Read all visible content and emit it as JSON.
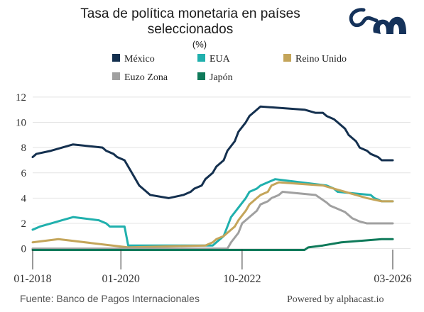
{
  "header": {
    "title_line1": "Tasa de política monetaria en países",
    "title_line2": "seleccionados",
    "unit": "(%)"
  },
  "footer": {
    "source": "Fuente: Banco de Pagos Internacionales",
    "powered": "Powered by alphacast.io"
  },
  "colors": {
    "mexico": "#14304f",
    "eua": "#20b0ad",
    "reino_unido": "#c4a55a",
    "euro": "#a0a0a0",
    "japon": "#0f7a5a",
    "grid": "#e3e3e3",
    "logo": "#15325a"
  },
  "chart_data": {
    "type": "line",
    "x_ticks": [
      "01-2018",
      "01-2020",
      "10-2022",
      "03-2026"
    ],
    "y_ticks": [
      0,
      2,
      4,
      6,
      8,
      10,
      12
    ],
    "ylim": [
      -0.3,
      12.5
    ],
    "x_range": [
      "01-2018",
      "03-2026"
    ],
    "grid": true,
    "legend_position": "top",
    "series": [
      {
        "name": "México",
        "key": "mexico",
        "points": [
          [
            "01-2018",
            7.25
          ],
          [
            "02-2018",
            7.5
          ],
          [
            "06-2018",
            7.75
          ],
          [
            "12-2018",
            8.25
          ],
          [
            "08-2019",
            8.0
          ],
          [
            "09-2019",
            7.75
          ],
          [
            "11-2019",
            7.5
          ],
          [
            "12-2019",
            7.25
          ],
          [
            "02-2020",
            7.0
          ],
          [
            "03-2020",
            6.5
          ],
          [
            "04-2020",
            6.0
          ],
          [
            "05-2020",
            5.5
          ],
          [
            "06-2020",
            5.0
          ],
          [
            "08-2020",
            4.5
          ],
          [
            "09-2020",
            4.25
          ],
          [
            "02-2021",
            4.0
          ],
          [
            "06-2021",
            4.25
          ],
          [
            "08-2021",
            4.5
          ],
          [
            "09-2021",
            4.75
          ],
          [
            "11-2021",
            5.0
          ],
          [
            "12-2021",
            5.5
          ],
          [
            "02-2022",
            6.0
          ],
          [
            "03-2022",
            6.5
          ],
          [
            "05-2022",
            7.0
          ],
          [
            "06-2022",
            7.75
          ],
          [
            "08-2022",
            8.5
          ],
          [
            "09-2022",
            9.25
          ],
          [
            "11-2022",
            10.0
          ],
          [
            "12-2022",
            10.5
          ],
          [
            "02-2023",
            11.0
          ],
          [
            "03-2023",
            11.25
          ],
          [
            "03-2024",
            11.0
          ],
          [
            "06-2024",
            10.75
          ],
          [
            "08-2024",
            10.75
          ],
          [
            "09-2024",
            10.5
          ],
          [
            "11-2024",
            10.25
          ],
          [
            "12-2024",
            10.0
          ],
          [
            "02-2025",
            9.5
          ],
          [
            "03-2025",
            9.0
          ],
          [
            "05-2025",
            8.5
          ],
          [
            "06-2025",
            8.0
          ],
          [
            "08-2025",
            7.75
          ],
          [
            "09-2025",
            7.5
          ],
          [
            "11-2025",
            7.25
          ],
          [
            "12-2025",
            7.0
          ],
          [
            "03-2026",
            7.0
          ]
        ]
      },
      {
        "name": "EUA",
        "key": "eua",
        "points": [
          [
            "01-2018",
            1.5
          ],
          [
            "03-2018",
            1.75
          ],
          [
            "06-2018",
            2.0
          ],
          [
            "09-2018",
            2.25
          ],
          [
            "12-2018",
            2.5
          ],
          [
            "07-2019",
            2.25
          ],
          [
            "09-2019",
            2.0
          ],
          [
            "10-2019",
            1.75
          ],
          [
            "02-2020",
            1.75
          ],
          [
            "03-2020",
            0.25
          ],
          [
            "02-2022",
            0.25
          ],
          [
            "03-2022",
            0.5
          ],
          [
            "05-2022",
            1.0
          ],
          [
            "06-2022",
            1.75
          ],
          [
            "07-2022",
            2.5
          ],
          [
            "09-2022",
            3.25
          ],
          [
            "11-2022",
            4.0
          ],
          [
            "12-2022",
            4.5
          ],
          [
            "02-2023",
            4.75
          ],
          [
            "03-2023",
            5.0
          ],
          [
            "05-2023",
            5.25
          ],
          [
            "07-2023",
            5.5
          ],
          [
            "09-2024",
            5.0
          ],
          [
            "11-2024",
            4.75
          ],
          [
            "12-2024",
            4.5
          ],
          [
            "09-2025",
            4.25
          ],
          [
            "10-2025",
            4.0
          ],
          [
            "12-2025",
            3.75
          ],
          [
            "03-2026",
            3.75
          ]
        ]
      },
      {
        "name": "Reino Unido",
        "key": "reino_unido",
        "points": [
          [
            "01-2018",
            0.5
          ],
          [
            "08-2018",
            0.75
          ],
          [
            "03-2020",
            0.1
          ],
          [
            "12-2021",
            0.25
          ],
          [
            "02-2022",
            0.5
          ],
          [
            "03-2022",
            0.75
          ],
          [
            "05-2022",
            1.0
          ],
          [
            "06-2022",
            1.25
          ],
          [
            "08-2022",
            1.75
          ],
          [
            "09-2022",
            2.25
          ],
          [
            "11-2022",
            3.0
          ],
          [
            "12-2022",
            3.5
          ],
          [
            "02-2023",
            4.0
          ],
          [
            "03-2023",
            4.25
          ],
          [
            "05-2023",
            4.5
          ],
          [
            "06-2023",
            5.0
          ],
          [
            "08-2023",
            5.25
          ],
          [
            "08-2024",
            5.0
          ],
          [
            "11-2024",
            4.75
          ],
          [
            "02-2025",
            4.5
          ],
          [
            "05-2025",
            4.25
          ],
          [
            "08-2025",
            4.0
          ],
          [
            "12-2025",
            3.75
          ],
          [
            "03-2026",
            3.75
          ]
        ]
      },
      {
        "name": "Euzo Zona",
        "key": "euro",
        "points": [
          [
            "01-2018",
            0.0
          ],
          [
            "06-2022",
            0.0
          ],
          [
            "07-2022",
            0.5
          ],
          [
            "09-2022",
            1.25
          ],
          [
            "10-2022",
            2.0
          ],
          [
            "12-2022",
            2.5
          ],
          [
            "02-2023",
            3.0
          ],
          [
            "03-2023",
            3.5
          ],
          [
            "05-2023",
            3.75
          ],
          [
            "06-2023",
            4.0
          ],
          [
            "08-2023",
            4.25
          ],
          [
            "09-2023",
            4.5
          ],
          [
            "06-2024",
            4.25
          ],
          [
            "09-2024",
            3.65
          ],
          [
            "10-2024",
            3.4
          ],
          [
            "12-2024",
            3.15
          ],
          [
            "02-2025",
            2.9
          ],
          [
            "03-2025",
            2.65
          ],
          [
            "04-2025",
            2.4
          ],
          [
            "06-2025",
            2.15
          ],
          [
            "08-2025",
            2.0
          ],
          [
            "03-2026",
            2.0
          ]
        ]
      },
      {
        "name": "Japón",
        "key": "japon",
        "points": [
          [
            "01-2018",
            -0.1
          ],
          [
            "03-2024",
            -0.1
          ],
          [
            "04-2024",
            0.1
          ],
          [
            "08-2024",
            0.25
          ],
          [
            "01-2025",
            0.5
          ],
          [
            "12-2025",
            0.75
          ],
          [
            "03-2026",
            0.75
          ]
        ]
      }
    ]
  }
}
